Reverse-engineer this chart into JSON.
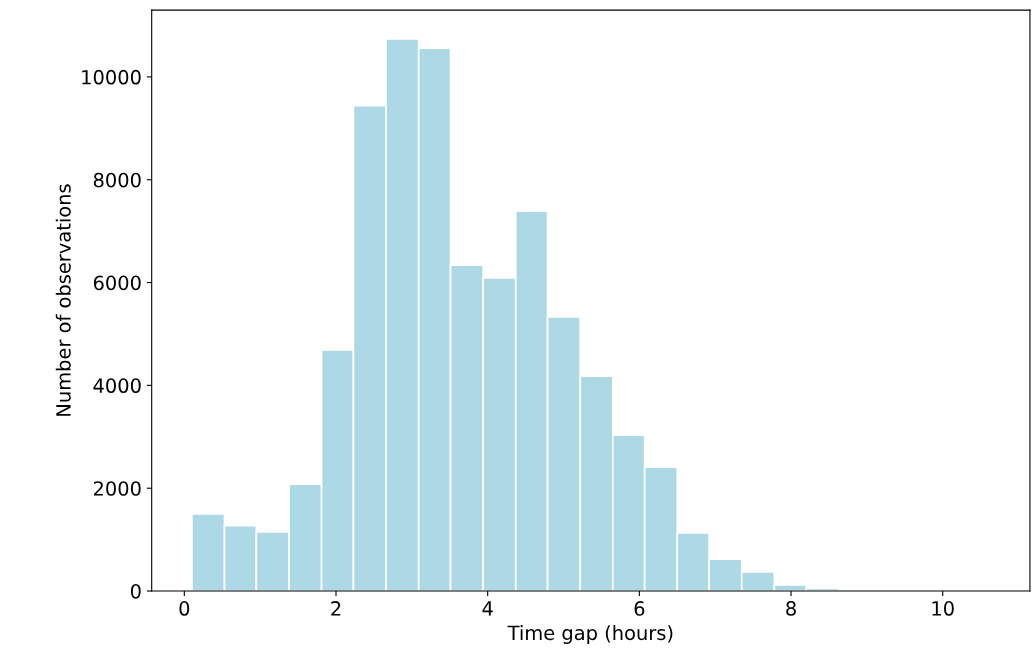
{
  "chart_data": {
    "type": "histogram",
    "xlabel": "Time gap (hours)",
    "ylabel": "Number of observations",
    "bins": [
      0.1,
      0.53,
      0.95,
      1.38,
      1.81,
      2.23,
      2.66,
      3.09,
      3.51,
      3.94,
      4.37,
      4.79,
      5.22,
      5.65,
      6.07,
      6.5,
      6.92,
      7.35,
      7.78,
      8.2,
      8.63
    ],
    "values": [
      1500,
      1270,
      1150,
      2080,
      4690,
      9440,
      10740,
      10560,
      6340,
      6090,
      7390,
      5330,
      4180,
      3030,
      2410,
      1130,
      620,
      370,
      120,
      50
    ],
    "color": "#add8e6",
    "xlim": [
      -0.43,
      11.15
    ],
    "xticks": [
      0,
      2,
      4,
      6,
      8,
      10
    ],
    "ylim": [
      0,
      11300
    ],
    "yticks": [
      0,
      2000,
      4000,
      6000,
      8000,
      10000
    ],
    "grid": false
  }
}
